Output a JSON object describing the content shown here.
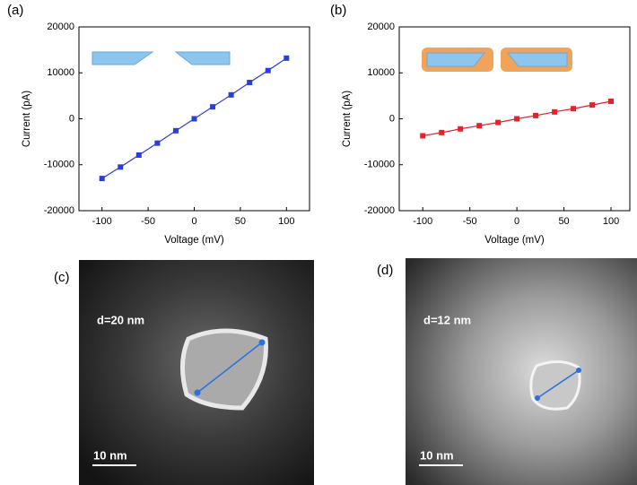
{
  "chart_data": [
    {
      "type": "line",
      "label": "(a)",
      "xlabel": "Voltage (mV)",
      "ylabel": "Current (pA)",
      "x": [
        -100,
        -80,
        -60,
        -40,
        -20,
        0,
        20,
        40,
        60,
        80,
        100
      ],
      "values": [
        -13000,
        -10500,
        -7900,
        -5300,
        -2600,
        0,
        2600,
        5200,
        7900,
        10500,
        13200
      ],
      "color": "#2b3fd8",
      "xlim": [
        -125,
        125
      ],
      "xticks": [
        -100,
        -50,
        0,
        50,
        100
      ],
      "ylim": [
        -20000,
        20000
      ],
      "yticks": [
        -20000,
        -10000,
        0,
        10000,
        20000
      ]
    },
    {
      "type": "line",
      "label": "(b)",
      "xlabel": "Voltage (mV)",
      "ylabel": "Current (pA)",
      "x": [
        -100,
        -80,
        -60,
        -40,
        -20,
        0,
        20,
        40,
        60,
        80,
        100
      ],
      "values": [
        -3700,
        -3000,
        -2200,
        -1500,
        -800,
        0,
        700,
        1500,
        2200,
        3000,
        3800
      ],
      "color": "#e8202a",
      "xlim": [
        -125,
        120
      ],
      "xticks": [
        -100,
        -50,
        0,
        50,
        100
      ],
      "ylim": [
        -20000,
        20000
      ],
      "yticks": [
        -20000,
        -10000,
        0,
        10000,
        20000
      ]
    }
  ],
  "images": [
    {
      "label": "(c)",
      "annotation": "d=20 nm",
      "scale_bar": "10 nm"
    },
    {
      "label": "(d)",
      "annotation": "d=12 nm",
      "scale_bar": "10 nm"
    }
  ]
}
